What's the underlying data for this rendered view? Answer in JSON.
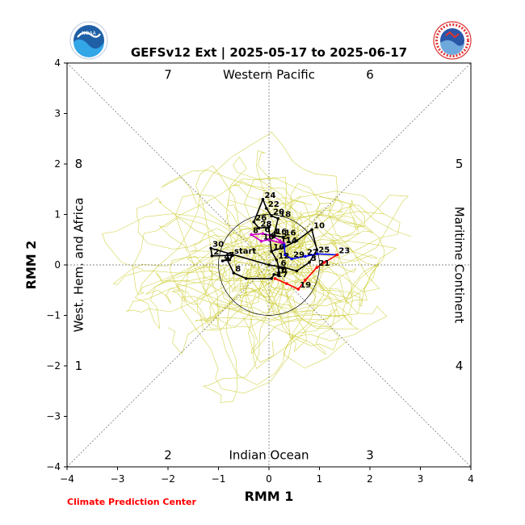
{
  "chart_data": {
    "type": "line",
    "title": "GEFSv12 Ext | 2025-05-17 to 2025-06-17",
    "xlabel": "RMM 1",
    "ylabel": "RMM 2",
    "xlim": [
      -4,
      4
    ],
    "ylim": [
      -4,
      4
    ],
    "xticks": [
      -4,
      -3,
      -2,
      -1,
      0,
      1,
      2,
      3,
      4
    ],
    "yticks": [
      -4,
      -3,
      -2,
      -1,
      0,
      1,
      2,
      3,
      4
    ],
    "grid": false,
    "unit_circle_radius": 1,
    "credit": "Climate Prediction Center",
    "logos": [
      "noaa-logo",
      "national-weather-service-logo"
    ],
    "region_labels": {
      "top": "Western Pacific",
      "bottom": "Indian Ocean",
      "left": "West. Hem. and Africa",
      "right": "Maritime Continent"
    },
    "phase_labels": [
      {
        "label": "7",
        "x": -2.0,
        "y": 3.77
      },
      {
        "label": "6",
        "x": 2.0,
        "y": 3.77
      },
      {
        "label": "8",
        "x": -3.77,
        "y": 2.0
      },
      {
        "label": "5",
        "x": 3.77,
        "y": 2.0
      },
      {
        "label": "1",
        "x": -3.77,
        "y": -2.0
      },
      {
        "label": "4",
        "x": 3.77,
        "y": -2.0
      },
      {
        "label": "2",
        "x": -2.0,
        "y": -3.77
      },
      {
        "label": "3",
        "x": 2.0,
        "y": -3.77
      }
    ],
    "colors": {
      "observed": "#000000",
      "ensemble": "#cccc33",
      "segment_magenta": "#cc00cc",
      "segment_blue": "#0000ff",
      "segment_red": "#ff0000"
    },
    "series": [
      {
        "color": "#000000",
        "points": [
          {
            "x": -0.72,
            "y": 0.19,
            "label": "start"
          },
          {
            "x": -0.78,
            "y": 0.1
          },
          {
            "x": -0.92,
            "y": 0.08,
            "label": "4"
          },
          {
            "x": -0.83,
            "y": 0.11,
            "label": "7"
          },
          {
            "x": -0.7,
            "y": -0.16,
            "label": "8"
          },
          {
            "x": -0.45,
            "y": -0.27
          },
          {
            "x": 0.05,
            "y": -0.27
          },
          {
            "x": 0.1,
            "y": -0.19,
            "label": "10"
          },
          {
            "x": 0.18,
            "y": -0.2,
            "label": "7"
          },
          {
            "x": 0.2,
            "y": -0.05,
            "label": "6"
          },
          {
            "x": 0.15,
            "y": 0.1,
            "label": "12"
          },
          {
            "x": 0.05,
            "y": 0.27,
            "label": "16"
          },
          {
            "x": 0.3,
            "y": 0.35
          },
          {
            "x": 0.55,
            "y": 0.48
          },
          {
            "x": 0.85,
            "y": 0.7,
            "label": "10"
          },
          {
            "x": 0.95,
            "y": 0.3
          },
          {
            "x": 0.8,
            "y": 0.05,
            "label": "3"
          },
          {
            "x": 0.55,
            "y": -0.12
          },
          {
            "x": 0.3,
            "y": -0.05
          },
          {
            "x": 0.0,
            "y": 0.0
          },
          {
            "x": -1.15,
            "y": 0.33,
            "label": "30"
          },
          {
            "x": -1.13,
            "y": 0.18,
            "label": "2"
          },
          {
            "x": -0.72,
            "y": 0.19
          }
        ]
      },
      {
        "color": "#000000",
        "points": [
          {
            "x": 0.05,
            "y": 0.27
          },
          {
            "x": 0.02,
            "y": 0.5
          },
          {
            "x": 0.0,
            "y": 0.75
          },
          {
            "x": -0.2,
            "y": 0.73,
            "label": "28"
          },
          {
            "x": -0.3,
            "y": 0.85,
            "label": "26"
          },
          {
            "x": -0.12,
            "y": 1.3,
            "label": "24"
          },
          {
            "x": -0.05,
            "y": 1.12,
            "label": "22"
          },
          {
            "x": 0.05,
            "y": 0.97,
            "label": "20"
          },
          {
            "x": 0.18,
            "y": 0.92,
            "label": "18"
          },
          {
            "x": 0.1,
            "y": 0.58,
            "label": "16"
          },
          {
            "x": 0.28,
            "y": 0.55,
            "label": "16"
          },
          {
            "x": 0.3,
            "y": 0.4,
            "label": "14"
          }
        ]
      },
      {
        "color": "#cc00cc",
        "points": [
          {
            "x": -0.35,
            "y": 0.6,
            "label": "8"
          },
          {
            "x": -0.12,
            "y": 0.62,
            "label": "6"
          },
          {
            "x": 0.05,
            "y": 0.58,
            "label": "4"
          },
          {
            "x": 0.22,
            "y": 0.48,
            "label": "2"
          },
          {
            "x": 0.3,
            "y": 0.42,
            "label": "1"
          },
          {
            "x": 0.0,
            "y": 0.5,
            "label": "0"
          },
          {
            "x": -0.15,
            "y": 0.47,
            "label": "10"
          },
          {
            "x": -0.35,
            "y": 0.6
          }
        ]
      },
      {
        "color": "#0000ff",
        "points": [
          {
            "x": 0.3,
            "y": 0.4
          },
          {
            "x": 0.32,
            "y": 0.2
          },
          {
            "x": 0.45,
            "y": 0.12,
            "label": "29"
          },
          {
            "x": 0.72,
            "y": 0.17,
            "label": "27"
          },
          {
            "x": 0.95,
            "y": 0.22,
            "label": "25"
          },
          {
            "x": 1.35,
            "y": 0.2,
            "label": "23"
          }
        ]
      },
      {
        "color": "#ff0000",
        "points": [
          {
            "x": 1.35,
            "y": 0.2
          },
          {
            "x": 1.1,
            "y": 0.05
          },
          {
            "x": 0.95,
            "y": -0.05,
            "label": "21"
          },
          {
            "x": 0.72,
            "y": -0.3
          },
          {
            "x": 0.58,
            "y": -0.48,
            "label": "19"
          },
          {
            "x": 0.35,
            "y": -0.37
          },
          {
            "x": 0.12,
            "y": -0.27,
            "label": "17"
          }
        ]
      }
    ]
  }
}
